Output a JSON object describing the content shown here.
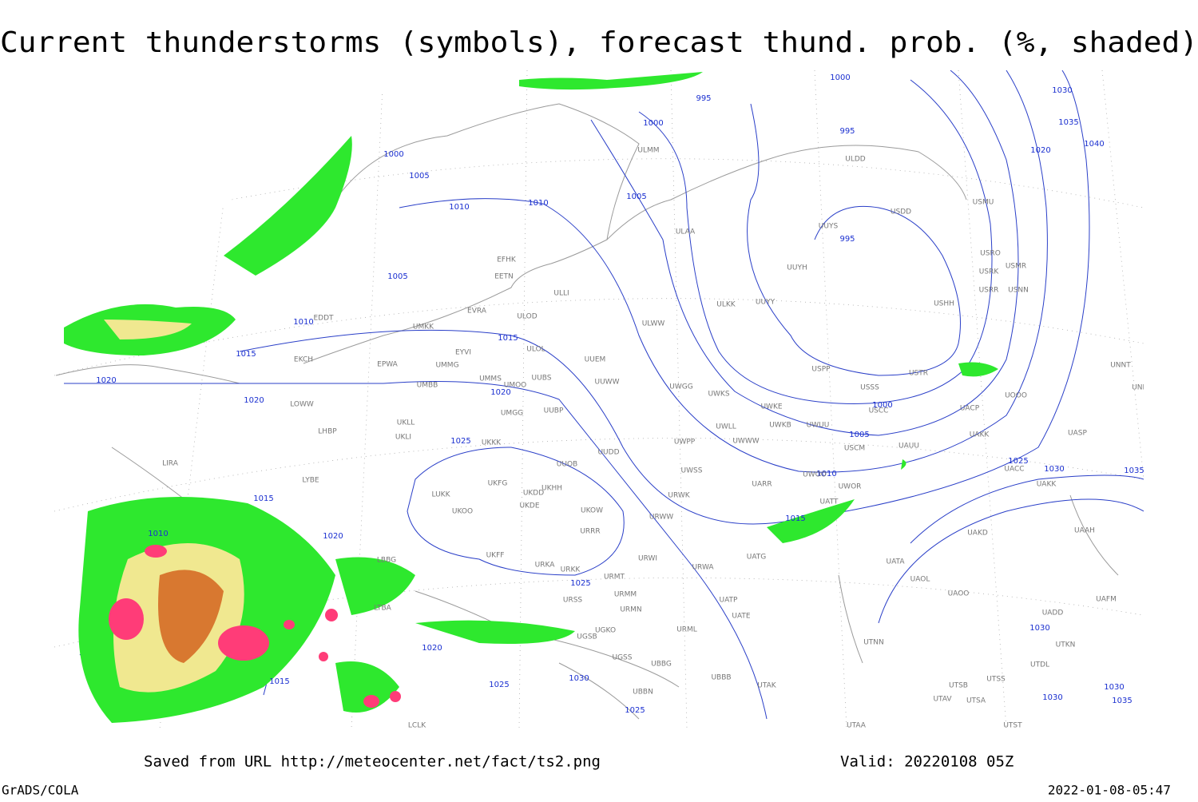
{
  "title": "Current thunderstorms (symbols), forecast thund. prob. (%, shaded)",
  "source": "Saved from URL http://meteocenter.net/fact/ts2.png",
  "valid": "Valid: 20220108 05Z",
  "software": "GrADS/COLA",
  "timestamp": "2022-01-08-05:47",
  "isobar_labels": [
    995,
    1000,
    1000,
    995,
    1000,
    1005,
    1010,
    1010,
    1005,
    995,
    1005,
    1010,
    1015,
    1015,
    1020,
    1020,
    1020,
    1000,
    1005,
    1025,
    1030,
    1035,
    1020,
    1040,
    1010,
    1025,
    1030,
    1035,
    1015,
    1015,
    1010,
    1020,
    1025,
    1020,
    1015,
    1025,
    1030,
    1025,
    1030,
    1030,
    1035,
    1030
  ],
  "stations": [
    "ULMM",
    "ULDD",
    "USDD",
    "USMU",
    "ULAA",
    "UUYS",
    "UUYH",
    "USRO",
    "USRK",
    "USMR",
    "USRR",
    "USNN",
    "USHH",
    "EFHK",
    "EETN",
    "ULLI",
    "UUYY",
    "ULKK",
    "EVRA",
    "ULOD",
    "UMKK",
    "ULWW",
    "EYVI",
    "UUEM",
    "ULOL",
    "EPWA",
    "UMMG",
    "UUWW",
    "UMMS",
    "UUBS",
    "UMOO",
    "UWGG",
    "UWKS",
    "USSS",
    "USTR",
    "USPP",
    "UMBB",
    "UMGG",
    "UUBP",
    "UWKE",
    "UNNT",
    "UNBB",
    "UOOO",
    "UACP",
    "UWLL",
    "UWKB",
    "UWUU",
    "UWWW",
    "USCC",
    "USCM",
    "UAUU",
    "UAKK",
    "UASP",
    "UKLL",
    "UKLI",
    "UKKK",
    "LHBP",
    "LOWW",
    "UWPP",
    "UUDD",
    "UUOB",
    "UWSS",
    "UWOO",
    "UWOR",
    "UATT",
    "UACC",
    "UAKK",
    "UARR",
    "UKHH",
    "UKDD",
    "UKFG",
    "LUKK",
    "UKOO",
    "UKDE",
    "UKOW",
    "URWW",
    "URWK",
    "UAKD",
    "UAAH",
    "URRR",
    "UKFF",
    "URKA",
    "URKK",
    "URWI",
    "URWA",
    "UATG",
    "UATA",
    "UAOL",
    "UAOO",
    "URMT",
    "URSS",
    "URMM",
    "URMN",
    "UATP",
    "UATE",
    "UAFM",
    "UADD",
    "LBBG",
    "LIRA",
    "LYBE",
    "UGSB",
    "UGKO",
    "UGSS",
    "URML",
    "UBBB",
    "UBBN",
    "UBBG",
    "UTAK",
    "UTNN",
    "UTSS",
    "UTSB",
    "UTAV",
    "UTSA",
    "UTDL",
    "UTKN",
    "UTAA",
    "UTST",
    "LTBA",
    "LCLK",
    "EDDT",
    "EKCH"
  ]
}
